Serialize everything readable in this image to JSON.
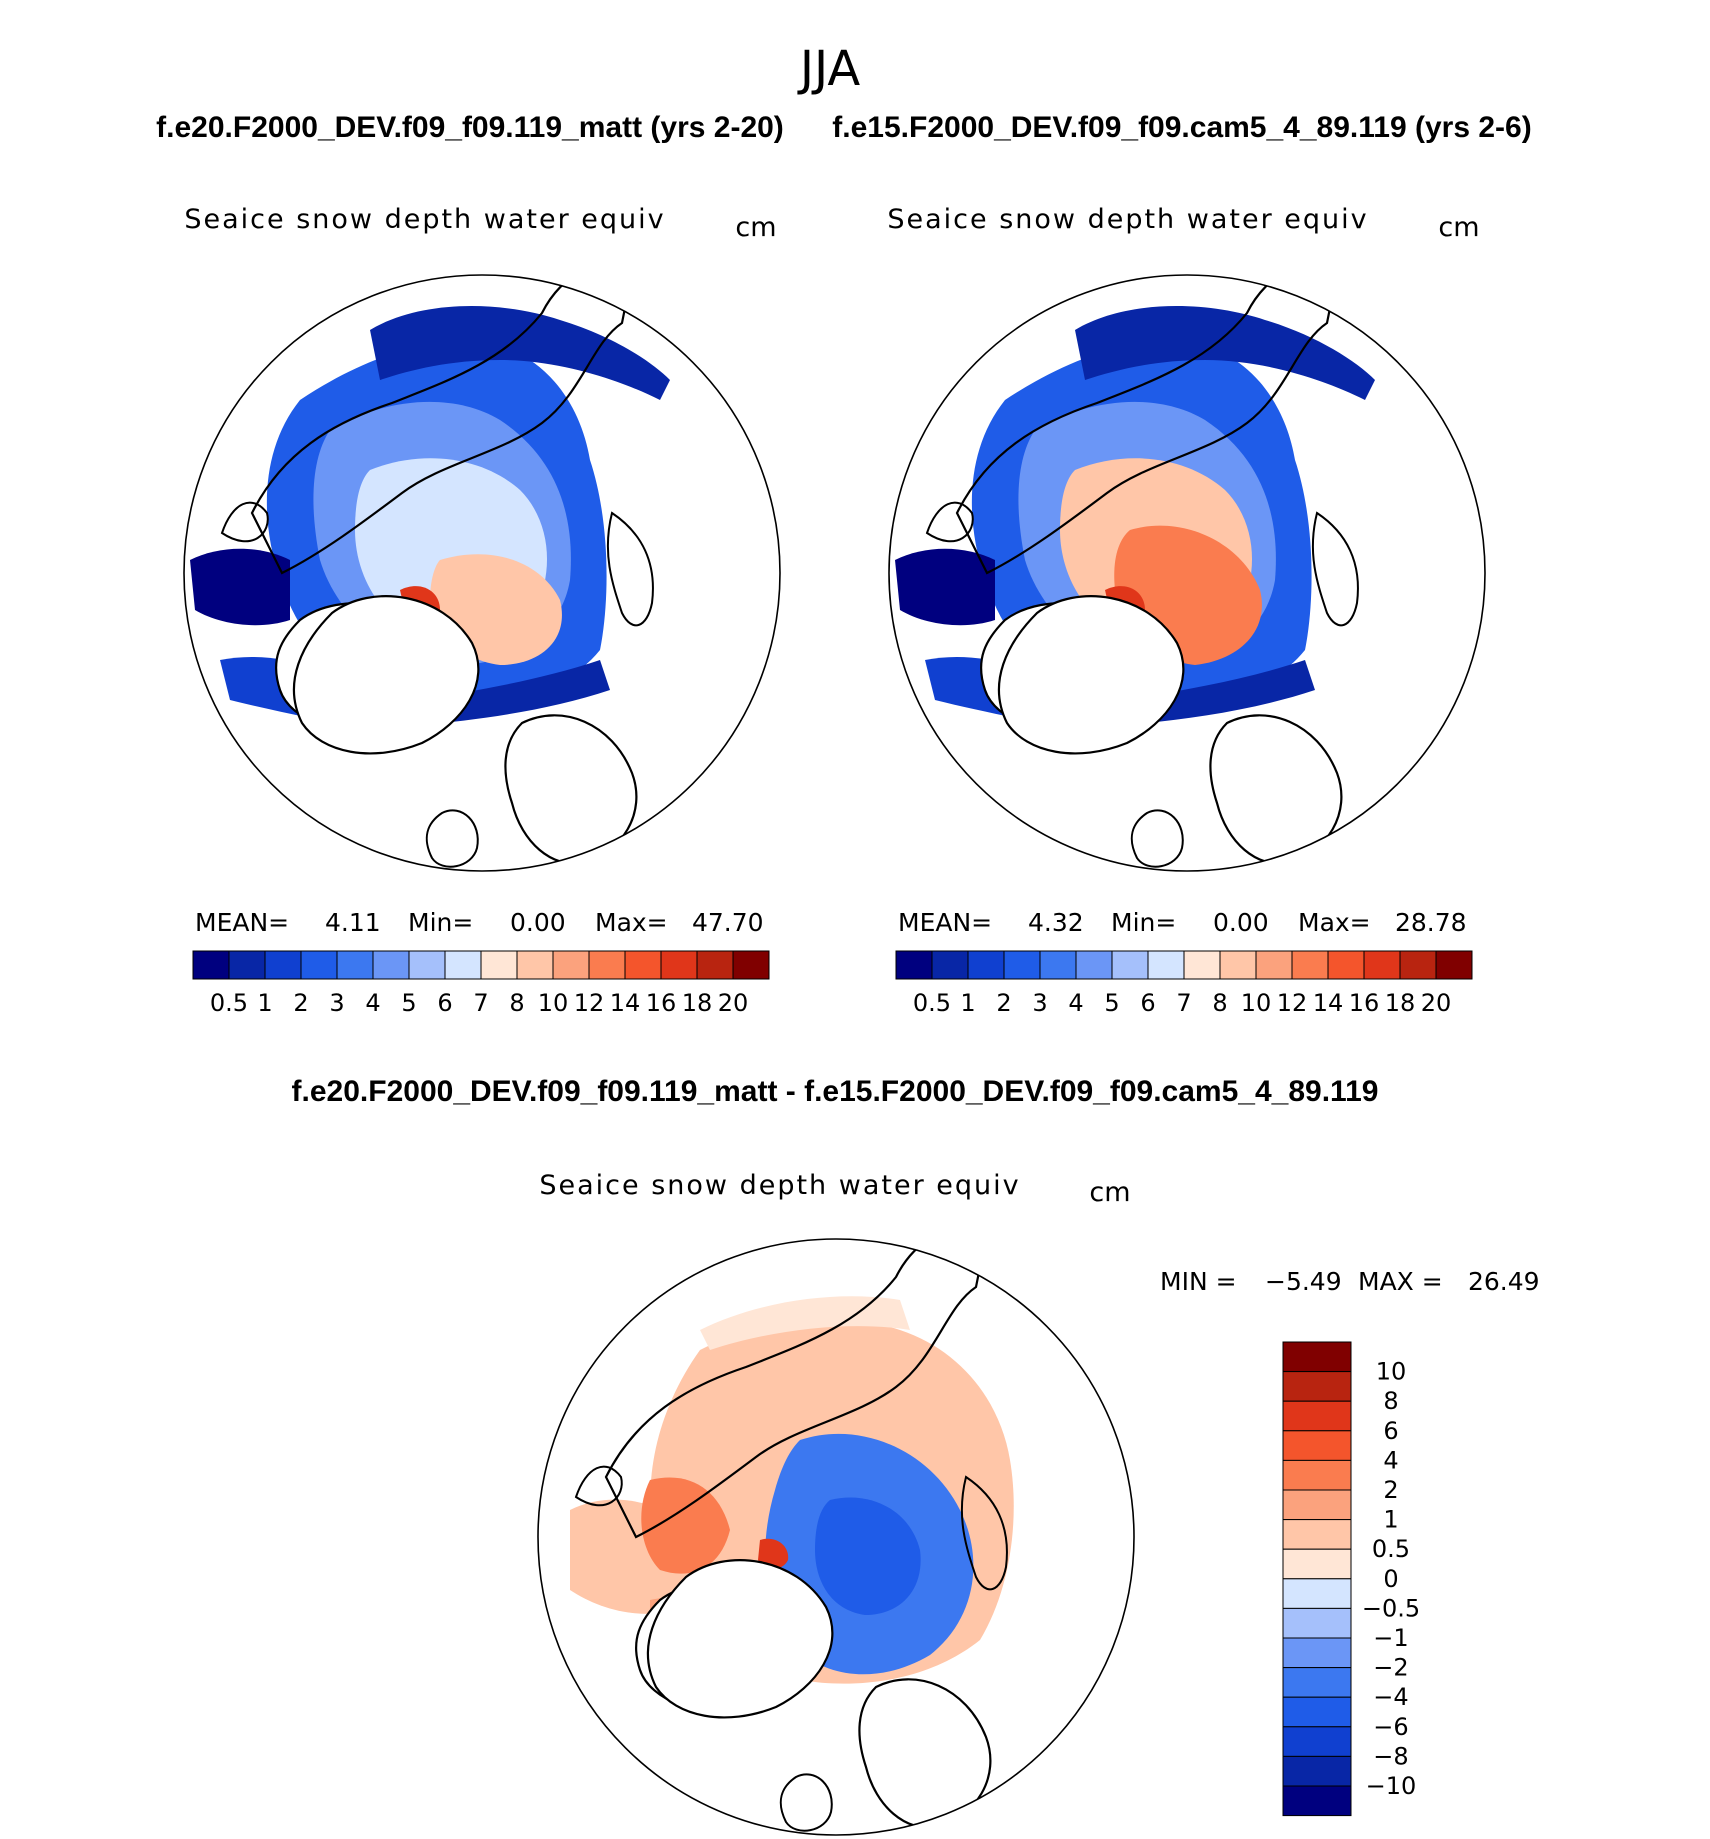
{
  "season": "JJA",
  "colors": {
    "seq": [
      "#00007f",
      "#0826a6",
      "#1040d0",
      "#1f5ce8",
      "#3c78f0",
      "#6b96f6",
      "#a5c0fb",
      "#d4e5ff",
      "#ffe6d6",
      "#ffc6a8",
      "#fba27d",
      "#fa7c4f",
      "#f4552c",
      "#e0361a",
      "#b82410",
      "#800000"
    ],
    "diff": [
      "#00007f",
      "#0826a6",
      "#1040d0",
      "#1f5ce8",
      "#3c78f0",
      "#6b96f6",
      "#a5c0fb",
      "#d4e5ff",
      "#ffe6d6",
      "#ffc6a8",
      "#fba27d",
      "#fa7c4f",
      "#f4552c",
      "#e0361a",
      "#b82410",
      "#800000"
    ],
    "land_line": "#000000"
  },
  "panels": [
    {
      "case_title": "f.e20.F2000_DEV.f09_f09.119_matt (yrs 2-20)",
      "field": "Seaice snow depth water equiv",
      "units": "cm",
      "stats": {
        "mean_label": "MEAN=",
        "mean": "4.11",
        "min_label": "Min=",
        "min": "0.00",
        "max_label": "Max=",
        "max": "47.70"
      },
      "colorbar_labels": [
        "0.5",
        "1",
        "2",
        "3",
        "4",
        "5",
        "6",
        "7",
        "8",
        "10",
        "12",
        "14",
        "16",
        "18",
        "20"
      ]
    },
    {
      "case_title": "f.e15.F2000_DEV.f09_f09.cam5_4_89.119 (yrs 2-6)",
      "field": "Seaice snow depth water equiv",
      "units": "cm",
      "stats": {
        "mean_label": "MEAN=",
        "mean": "4.32",
        "min_label": "Min=",
        "min": "0.00",
        "max_label": "Max=",
        "max": "28.78"
      },
      "colorbar_labels": [
        "0.5",
        "1",
        "2",
        "3",
        "4",
        "5",
        "6",
        "7",
        "8",
        "10",
        "12",
        "14",
        "16",
        "18",
        "20"
      ]
    }
  ],
  "diff_panel": {
    "title": "f.e20.F2000_DEV.f09_f09.119_matt - f.e15.F2000_DEV.f09_f09.cam5_4_89.119",
    "field": "Seaice snow depth water equiv",
    "units": "cm",
    "stats": {
      "min_label": "MIN =",
      "min": "-5.49",
      "max_label": "MAX =",
      "max": "26.49"
    },
    "colorbar_labels": [
      "10",
      "8",
      "6",
      "4",
      "2",
      "1",
      "0.5",
      "0",
      "-0.5",
      "-1",
      "-2",
      "-4",
      "-6",
      "-8",
      "-10"
    ]
  }
}
